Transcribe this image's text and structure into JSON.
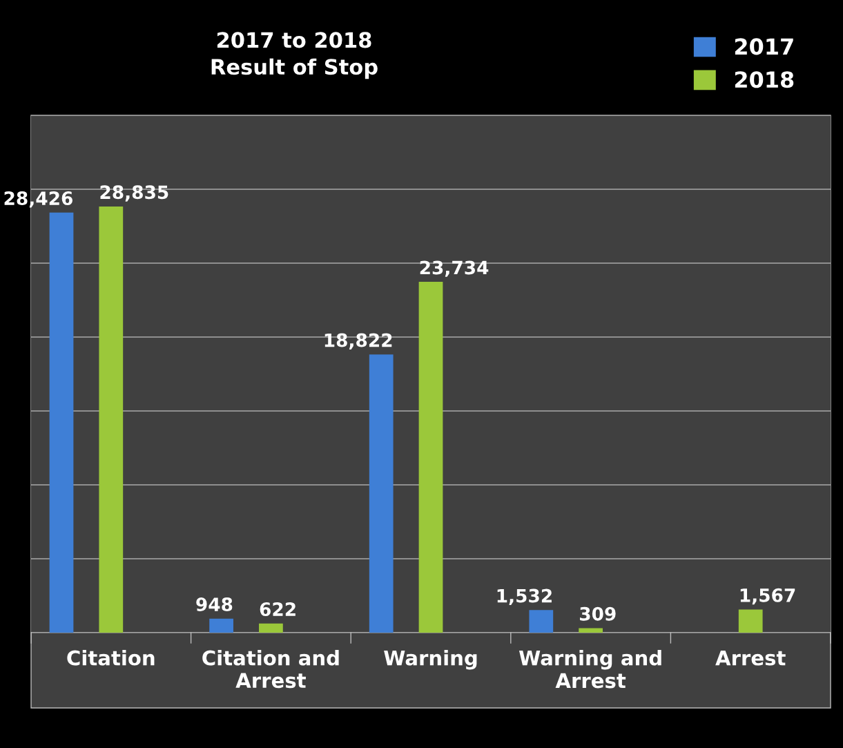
{
  "chart_data": {
    "type": "bar",
    "title": "2017 to 2018\nResult of Stop",
    "categories": [
      "Citation",
      "Citation and Arrest",
      "Warning",
      "Warning and Arrest",
      "Arrest"
    ],
    "series": [
      {
        "name": "2017",
        "color": "#3f7fd6",
        "values": [
          28426,
          948,
          18822,
          1532,
          null
        ],
        "value_labels": [
          "28,426",
          "948",
          "18,822",
          "1,532",
          null
        ]
      },
      {
        "name": "2018",
        "color": "#9bc83a",
        "values": [
          28835,
          622,
          23734,
          309,
          1567
        ],
        "value_labels": [
          "28,835",
          "622",
          "23,734",
          "309",
          "1,567"
        ]
      }
    ],
    "ylim": [
      0,
      35000
    ],
    "yticks": [
      {
        "value": 0,
        "label": null
      },
      {
        "value": 5000,
        "label": null
      },
      {
        "value": 10000,
        "label": null
      },
      {
        "value": 15000,
        "label": null
      },
      {
        "value": 20000,
        "label": null
      },
      {
        "value": 25000,
        "label": null
      },
      {
        "value": 30000,
        "label": null
      },
      {
        "value": 35000,
        "label": null
      }
    ],
    "tick_labels": "x",
    "grid": "y",
    "legend": "top right"
  }
}
